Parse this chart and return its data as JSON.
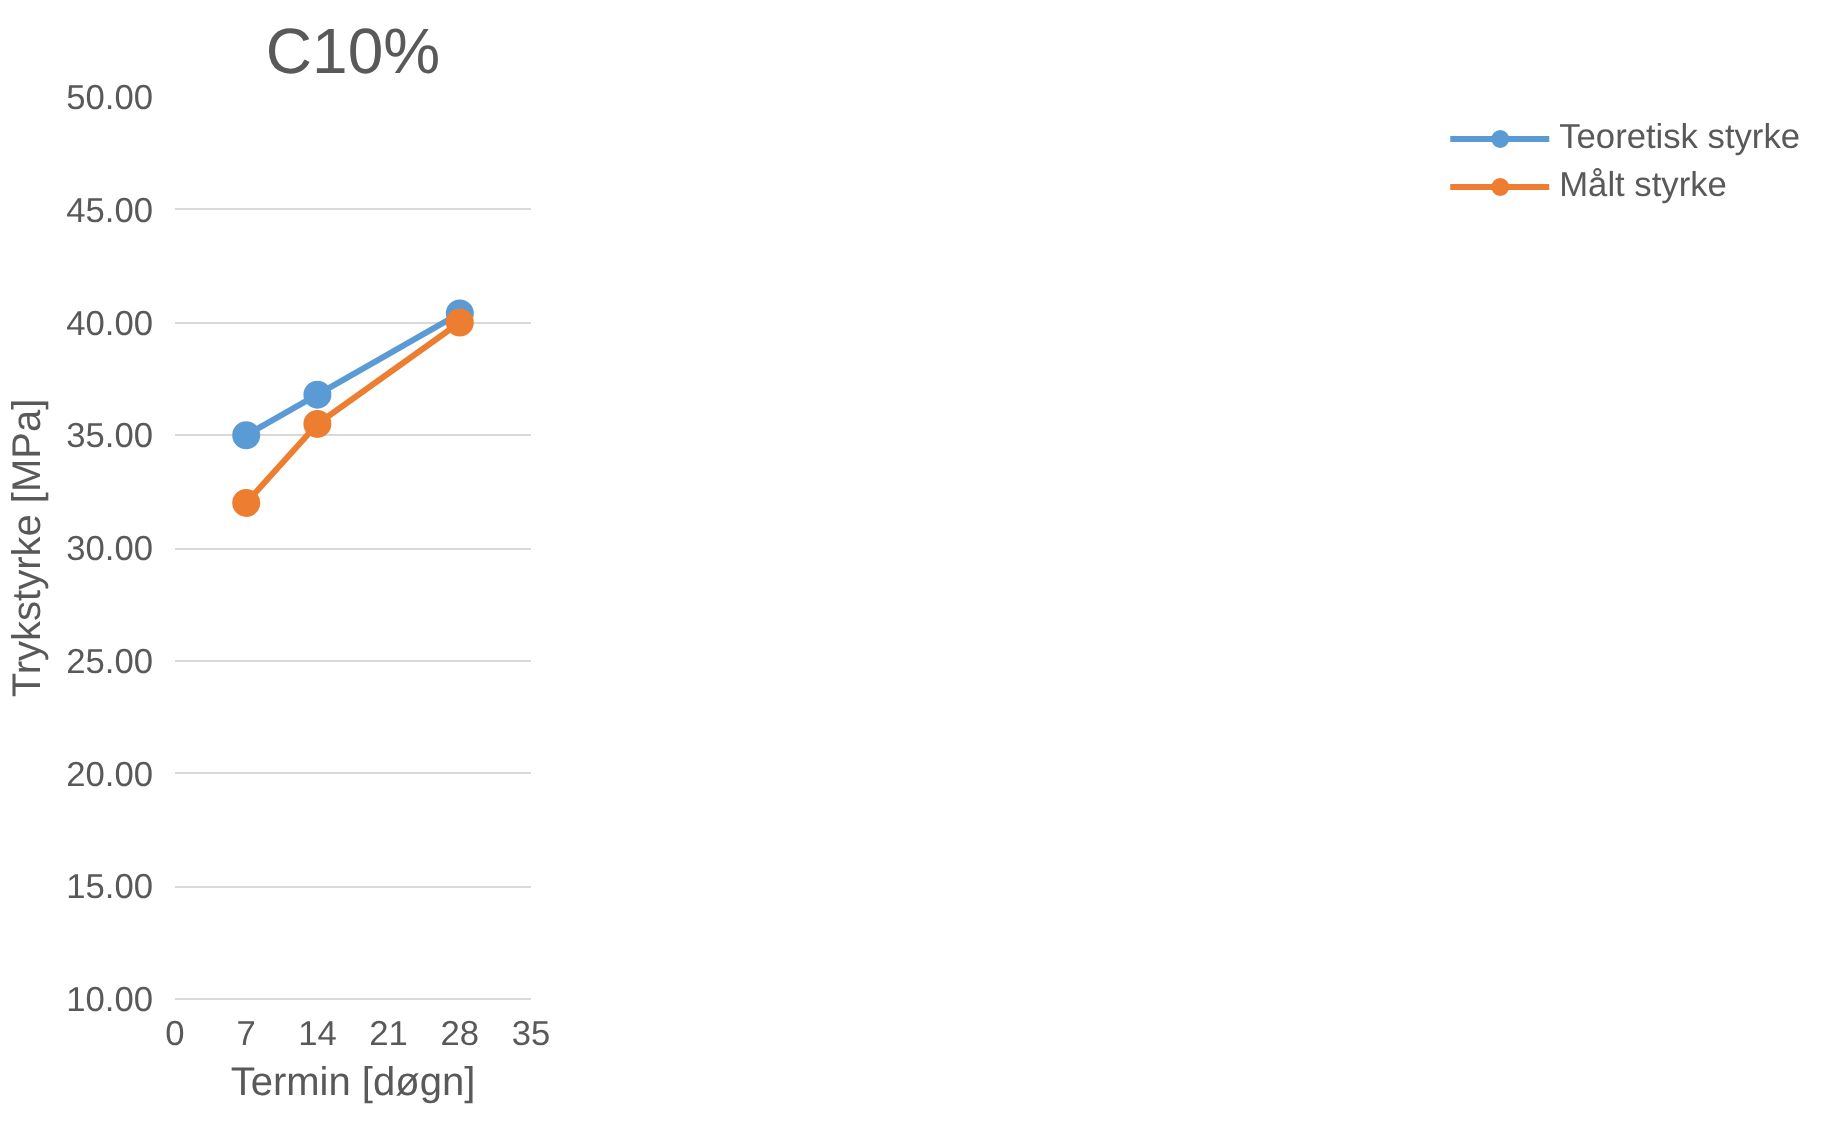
{
  "chart_data": {
    "type": "line",
    "title": "C10%",
    "xlabel": "Termin [døgn]",
    "ylabel": "Trykstyrke [MPa]",
    "x": [
      7,
      14,
      28
    ],
    "series": [
      {
        "name": "Teoretisk styrke",
        "color": "#5b9bd5",
        "values": [
          35.0,
          36.8,
          40.4
        ]
      },
      {
        "name": "Målt styrke",
        "color": "#ed7d31",
        "values": [
          32.0,
          35.5,
          40.0
        ]
      }
    ],
    "xlim": [
      0,
      35
    ],
    "xticks": [
      0,
      7,
      14,
      21,
      28,
      35
    ],
    "ylim": [
      10,
      50
    ],
    "yticks": [
      {
        "value": 10,
        "label": "10.00"
      },
      {
        "value": 15,
        "label": "15.00"
      },
      {
        "value": 20,
        "label": "20.00"
      },
      {
        "value": 25,
        "label": "25.00"
      },
      {
        "value": 30,
        "label": "30.00"
      },
      {
        "value": 35,
        "label": "35.00"
      },
      {
        "value": 40,
        "label": "40.00"
      },
      {
        "value": 45,
        "label": "45.00"
      },
      {
        "value": 50,
        "label": "50.00"
      }
    ],
    "grid": "y",
    "legend": "right",
    "marker": "circle",
    "line_style": "solid"
  }
}
